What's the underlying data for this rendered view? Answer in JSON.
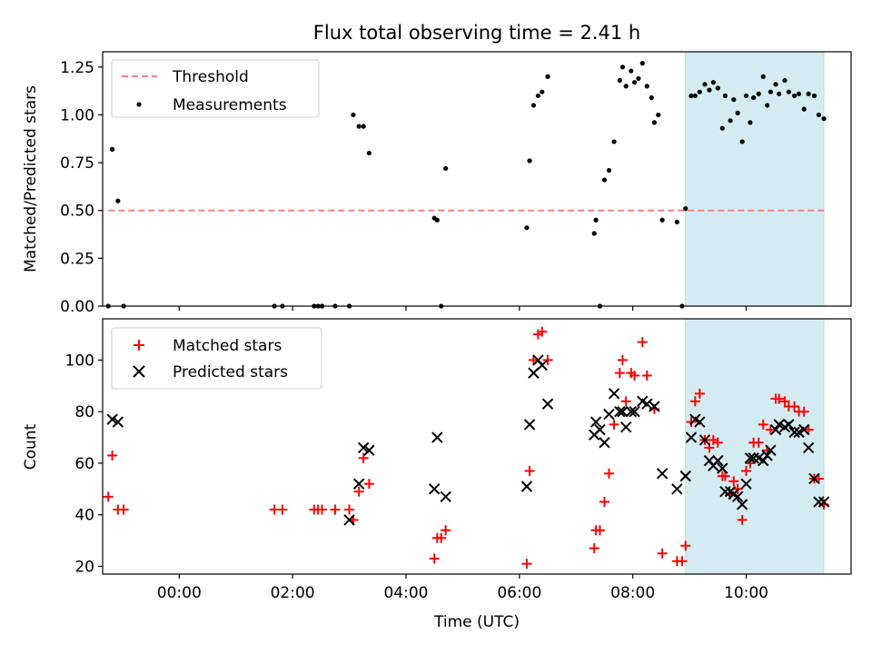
{
  "chart_data": [
    {
      "type": "scatter",
      "title": "Flux total observing time = 2.41 h",
      "xlabel": "",
      "ylabel": "Matched/Predicted stars",
      "xlim": [
        -1.35,
        11.85
      ],
      "ylim": [
        0,
        1.33
      ],
      "grid": false,
      "legend_placement": "top-left",
      "x_axis_type": "time (hours)",
      "x_ticks_hours": [
        0,
        2,
        4,
        6,
        8,
        10
      ],
      "x_tick_labels": [],
      "y_ticks": [
        0,
        0.25,
        0.5,
        0.75,
        1.0,
        1.25
      ],
      "y_tick_labels": [
        "0.00",
        "0.25",
        "0.50",
        "0.75",
        "1.00",
        "1.25"
      ],
      "highlight_span_hours": [
        8.93,
        11.37
      ],
      "highlight_color": "#d4ebf1",
      "threshold": {
        "name": "Threshold",
        "y": 0.5,
        "x_range": [
          -1.25,
          11.37
        ],
        "color": "#ff7f7f",
        "style": "dashed"
      },
      "series": [
        {
          "name": "Measurements",
          "color": "#000000",
          "marker": "dot",
          "points": [
            [
              -1.25,
              0.0
            ],
            [
              -1.18,
              0.82
            ],
            [
              -1.08,
              0.55
            ],
            [
              -0.98,
              0.0
            ],
            [
              1.68,
              0.0
            ],
            [
              1.82,
              0.0
            ],
            [
              2.38,
              0.0
            ],
            [
              2.45,
              0.0
            ],
            [
              2.52,
              0.0
            ],
            [
              2.75,
              0.0
            ],
            [
              3.0,
              0.0
            ],
            [
              3.07,
              1.0
            ],
            [
              3.17,
              0.94
            ],
            [
              3.25,
              0.94
            ],
            [
              3.35,
              0.8
            ],
            [
              4.5,
              0.46
            ],
            [
              4.55,
              0.45
            ],
            [
              4.62,
              0.0
            ],
            [
              4.7,
              0.72
            ],
            [
              6.13,
              0.41
            ],
            [
              6.18,
              0.76
            ],
            [
              6.25,
              1.05
            ],
            [
              6.33,
              1.1
            ],
            [
              6.4,
              1.12
            ],
            [
              6.5,
              1.2
            ],
            [
              7.32,
              0.38
            ],
            [
              7.35,
              0.45
            ],
            [
              7.42,
              0.0
            ],
            [
              7.5,
              0.66
            ],
            [
              7.58,
              0.71
            ],
            [
              7.67,
              0.86
            ],
            [
              7.77,
              1.18
            ],
            [
              7.82,
              1.25
            ],
            [
              7.88,
              1.15
            ],
            [
              7.97,
              1.23
            ],
            [
              8.03,
              1.17
            ],
            [
              8.1,
              1.19
            ],
            [
              8.17,
              1.27
            ],
            [
              8.25,
              1.15
            ],
            [
              8.33,
              1.09
            ],
            [
              8.38,
              0.96
            ],
            [
              8.45,
              1.0
            ],
            [
              8.52,
              0.45
            ],
            [
              8.78,
              0.44
            ],
            [
              8.87,
              0.0
            ],
            [
              8.93,
              0.51
            ],
            [
              9.03,
              1.1
            ],
            [
              9.1,
              1.1
            ],
            [
              9.18,
              1.12
            ],
            [
              9.27,
              1.16
            ],
            [
              9.35,
              1.13
            ],
            [
              9.42,
              1.17
            ],
            [
              9.5,
              1.14
            ],
            [
              9.58,
              0.93
            ],
            [
              9.63,
              1.1
            ],
            [
              9.72,
              0.97
            ],
            [
              9.78,
              1.08
            ],
            [
              9.85,
              1.01
            ],
            [
              9.93,
              0.86
            ],
            [
              10.0,
              1.1
            ],
            [
              10.07,
              0.96
            ],
            [
              10.13,
              1.09
            ],
            [
              10.22,
              1.11
            ],
            [
              10.3,
              1.2
            ],
            [
              10.37,
              1.05
            ],
            [
              10.43,
              1.12
            ],
            [
              10.52,
              1.16
            ],
            [
              10.58,
              1.11
            ],
            [
              10.68,
              1.18
            ],
            [
              10.75,
              1.12
            ],
            [
              10.85,
              1.1
            ],
            [
              10.93,
              1.11
            ],
            [
              11.02,
              1.03
            ],
            [
              11.1,
              1.11
            ],
            [
              11.2,
              1.1
            ],
            [
              11.28,
              1.0
            ],
            [
              11.37,
              0.98
            ]
          ]
        }
      ]
    },
    {
      "type": "scatter",
      "title": "",
      "xlabel": "Time (UTC)",
      "ylabel": "Count",
      "xlim": [
        -1.35,
        11.85
      ],
      "ylim": [
        17,
        116
      ],
      "grid": false,
      "legend_placement": "top-left",
      "x_axis_type": "time (hours)",
      "x_ticks_hours": [
        0,
        2,
        4,
        6,
        8,
        10
      ],
      "x_tick_labels": [
        "00:00",
        "02:00",
        "04:00",
        "06:00",
        "08:00",
        "10:00"
      ],
      "y_ticks": [
        20,
        40,
        60,
        80,
        100
      ],
      "y_tick_labels": [
        "20",
        "40",
        "60",
        "80",
        "100"
      ],
      "highlight_span_hours": [
        8.93,
        11.37
      ],
      "highlight_color": "#d4ebf1",
      "series": [
        {
          "name": "Matched stars",
          "color": "#ff0000",
          "marker": "plus",
          "points": [
            [
              -1.25,
              47
            ],
            [
              -1.18,
              63
            ],
            [
              -1.08,
              42
            ],
            [
              -0.98,
              42
            ],
            [
              1.68,
              42
            ],
            [
              1.82,
              42
            ],
            [
              2.38,
              42
            ],
            [
              2.45,
              42
            ],
            [
              2.52,
              42
            ],
            [
              2.75,
              42
            ],
            [
              3.0,
              42
            ],
            [
              3.07,
              38
            ],
            [
              3.17,
              49
            ],
            [
              3.25,
              62
            ],
            [
              3.35,
              52
            ],
            [
              4.5,
              23
            ],
            [
              4.55,
              31
            ],
            [
              4.62,
              31
            ],
            [
              4.7,
              34
            ],
            [
              6.13,
              21
            ],
            [
              6.18,
              57
            ],
            [
              6.25,
              100
            ],
            [
              6.33,
              110
            ],
            [
              6.4,
              111
            ],
            [
              6.5,
              100
            ],
            [
              7.32,
              27
            ],
            [
              7.35,
              34
            ],
            [
              7.42,
              34
            ],
            [
              7.5,
              45
            ],
            [
              7.58,
              56
            ],
            [
              7.67,
              75
            ],
            [
              7.77,
              95
            ],
            [
              7.82,
              100
            ],
            [
              7.88,
              84
            ],
            [
              7.97,
              95
            ],
            [
              8.03,
              94
            ],
            [
              8.17,
              107
            ],
            [
              8.25,
              94
            ],
            [
              8.38,
              81
            ],
            [
              8.52,
              25
            ],
            [
              8.78,
              22
            ],
            [
              8.87,
              22
            ],
            [
              8.93,
              28
            ],
            [
              9.03,
              76
            ],
            [
              9.1,
              84
            ],
            [
              9.18,
              87
            ],
            [
              9.27,
              69
            ],
            [
              9.35,
              66
            ],
            [
              9.42,
              69
            ],
            [
              9.5,
              68
            ],
            [
              9.58,
              55
            ],
            [
              9.63,
              55
            ],
            [
              9.72,
              48
            ],
            [
              9.78,
              53
            ],
            [
              9.85,
              50
            ],
            [
              9.93,
              38
            ],
            [
              10.0,
              57
            ],
            [
              10.07,
              60
            ],
            [
              10.13,
              68
            ],
            [
              10.22,
              68
            ],
            [
              10.3,
              75
            ],
            [
              10.37,
              65
            ],
            [
              10.43,
              73
            ],
            [
              10.52,
              85
            ],
            [
              10.58,
              85
            ],
            [
              10.68,
              84
            ],
            [
              10.75,
              82
            ],
            [
              10.85,
              82
            ],
            [
              10.93,
              80
            ],
            [
              11.02,
              80
            ],
            [
              11.1,
              73
            ],
            [
              11.2,
              54
            ],
            [
              11.28,
              54
            ],
            [
              11.37,
              44
            ]
          ]
        },
        {
          "name": "Predicted stars",
          "color": "#000000",
          "marker": "x",
          "points": [
            [
              -1.18,
              77
            ],
            [
              -1.08,
              76
            ],
            [
              3.0,
              38
            ],
            [
              3.17,
              52
            ],
            [
              3.25,
              66
            ],
            [
              3.35,
              65
            ],
            [
              4.5,
              50
            ],
            [
              4.55,
              70
            ],
            [
              4.7,
              47
            ],
            [
              6.13,
              51
            ],
            [
              6.18,
              75
            ],
            [
              6.25,
              95
            ],
            [
              6.33,
              100
            ],
            [
              6.4,
              98
            ],
            [
              6.5,
              83
            ],
            [
              7.32,
              71
            ],
            [
              7.35,
              76
            ],
            [
              7.42,
              73
            ],
            [
              7.5,
              68
            ],
            [
              7.58,
              79
            ],
            [
              7.67,
              87
            ],
            [
              7.77,
              80
            ],
            [
              7.82,
              80
            ],
            [
              7.88,
              74
            ],
            [
              7.97,
              80
            ],
            [
              8.03,
              80
            ],
            [
              8.17,
              84
            ],
            [
              8.25,
              83
            ],
            [
              8.38,
              82
            ],
            [
              8.52,
              56
            ],
            [
              8.78,
              50
            ],
            [
              8.93,
              55
            ],
            [
              9.03,
              70
            ],
            [
              9.1,
              77
            ],
            [
              9.18,
              76
            ],
            [
              9.27,
              69
            ],
            [
              9.35,
              61
            ],
            [
              9.42,
              59
            ],
            [
              9.5,
              61
            ],
            [
              9.58,
              58
            ],
            [
              9.63,
              49
            ],
            [
              9.72,
              49
            ],
            [
              9.78,
              48
            ],
            [
              9.85,
              47
            ],
            [
              9.93,
              44
            ],
            [
              10.0,
              52
            ],
            [
              10.07,
              62
            ],
            [
              10.13,
              62
            ],
            [
              10.22,
              62
            ],
            [
              10.3,
              61
            ],
            [
              10.37,
              63
            ],
            [
              10.43,
              65
            ],
            [
              10.52,
              73
            ],
            [
              10.58,
              75
            ],
            [
              10.68,
              74
            ],
            [
              10.75,
              75
            ],
            [
              10.85,
              72
            ],
            [
              10.93,
              72
            ],
            [
              11.02,
              73
            ],
            [
              11.1,
              66
            ],
            [
              11.2,
              54
            ],
            [
              11.28,
              45
            ],
            [
              11.37,
              45
            ]
          ]
        }
      ]
    }
  ]
}
